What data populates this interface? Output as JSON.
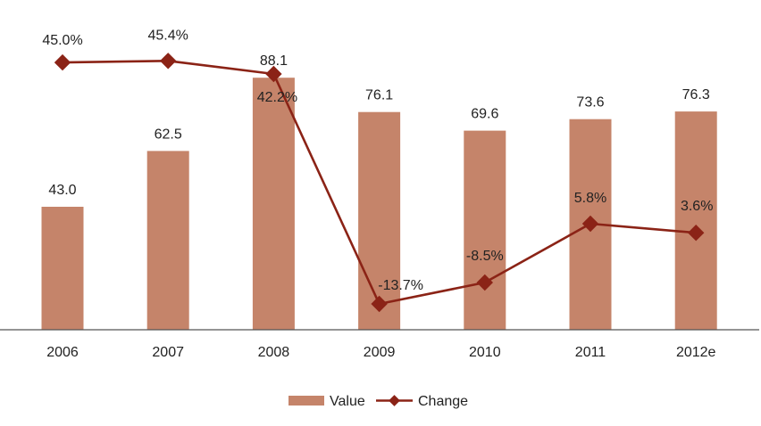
{
  "chart_data": {
    "type": "bar",
    "title": "",
    "xlabel": "",
    "ylabel": "",
    "categories": [
      "2006",
      "2007",
      "2008",
      "2009",
      "2010",
      "2011",
      "2012e"
    ],
    "series": [
      {
        "name": "Value",
        "type": "bar",
        "axis": "primary",
        "values": [
          43.0,
          62.5,
          88.1,
          76.1,
          69.6,
          73.6,
          76.3
        ],
        "labels": [
          "43.0",
          "62.5",
          "88.1",
          "76.1",
          "69.6",
          "73.6",
          "76.3"
        ],
        "color": "#C5846A"
      },
      {
        "name": "Change",
        "type": "line",
        "axis": "secondary",
        "values": [
          45.0,
          45.4,
          42.2,
          -13.7,
          -8.5,
          5.8,
          3.6
        ],
        "labels": [
          "45.0%",
          "45.4%",
          "42.2%",
          "-13.7%",
          "-8.5%",
          "5.8%",
          "3.6%"
        ],
        "color": "#8B2316",
        "marker": "diamond"
      }
    ],
    "ylim": [
      0,
      115
    ],
    "y2lim": [
      -20.1,
      60.2
    ],
    "grid": false,
    "legend": "bottom-center"
  }
}
